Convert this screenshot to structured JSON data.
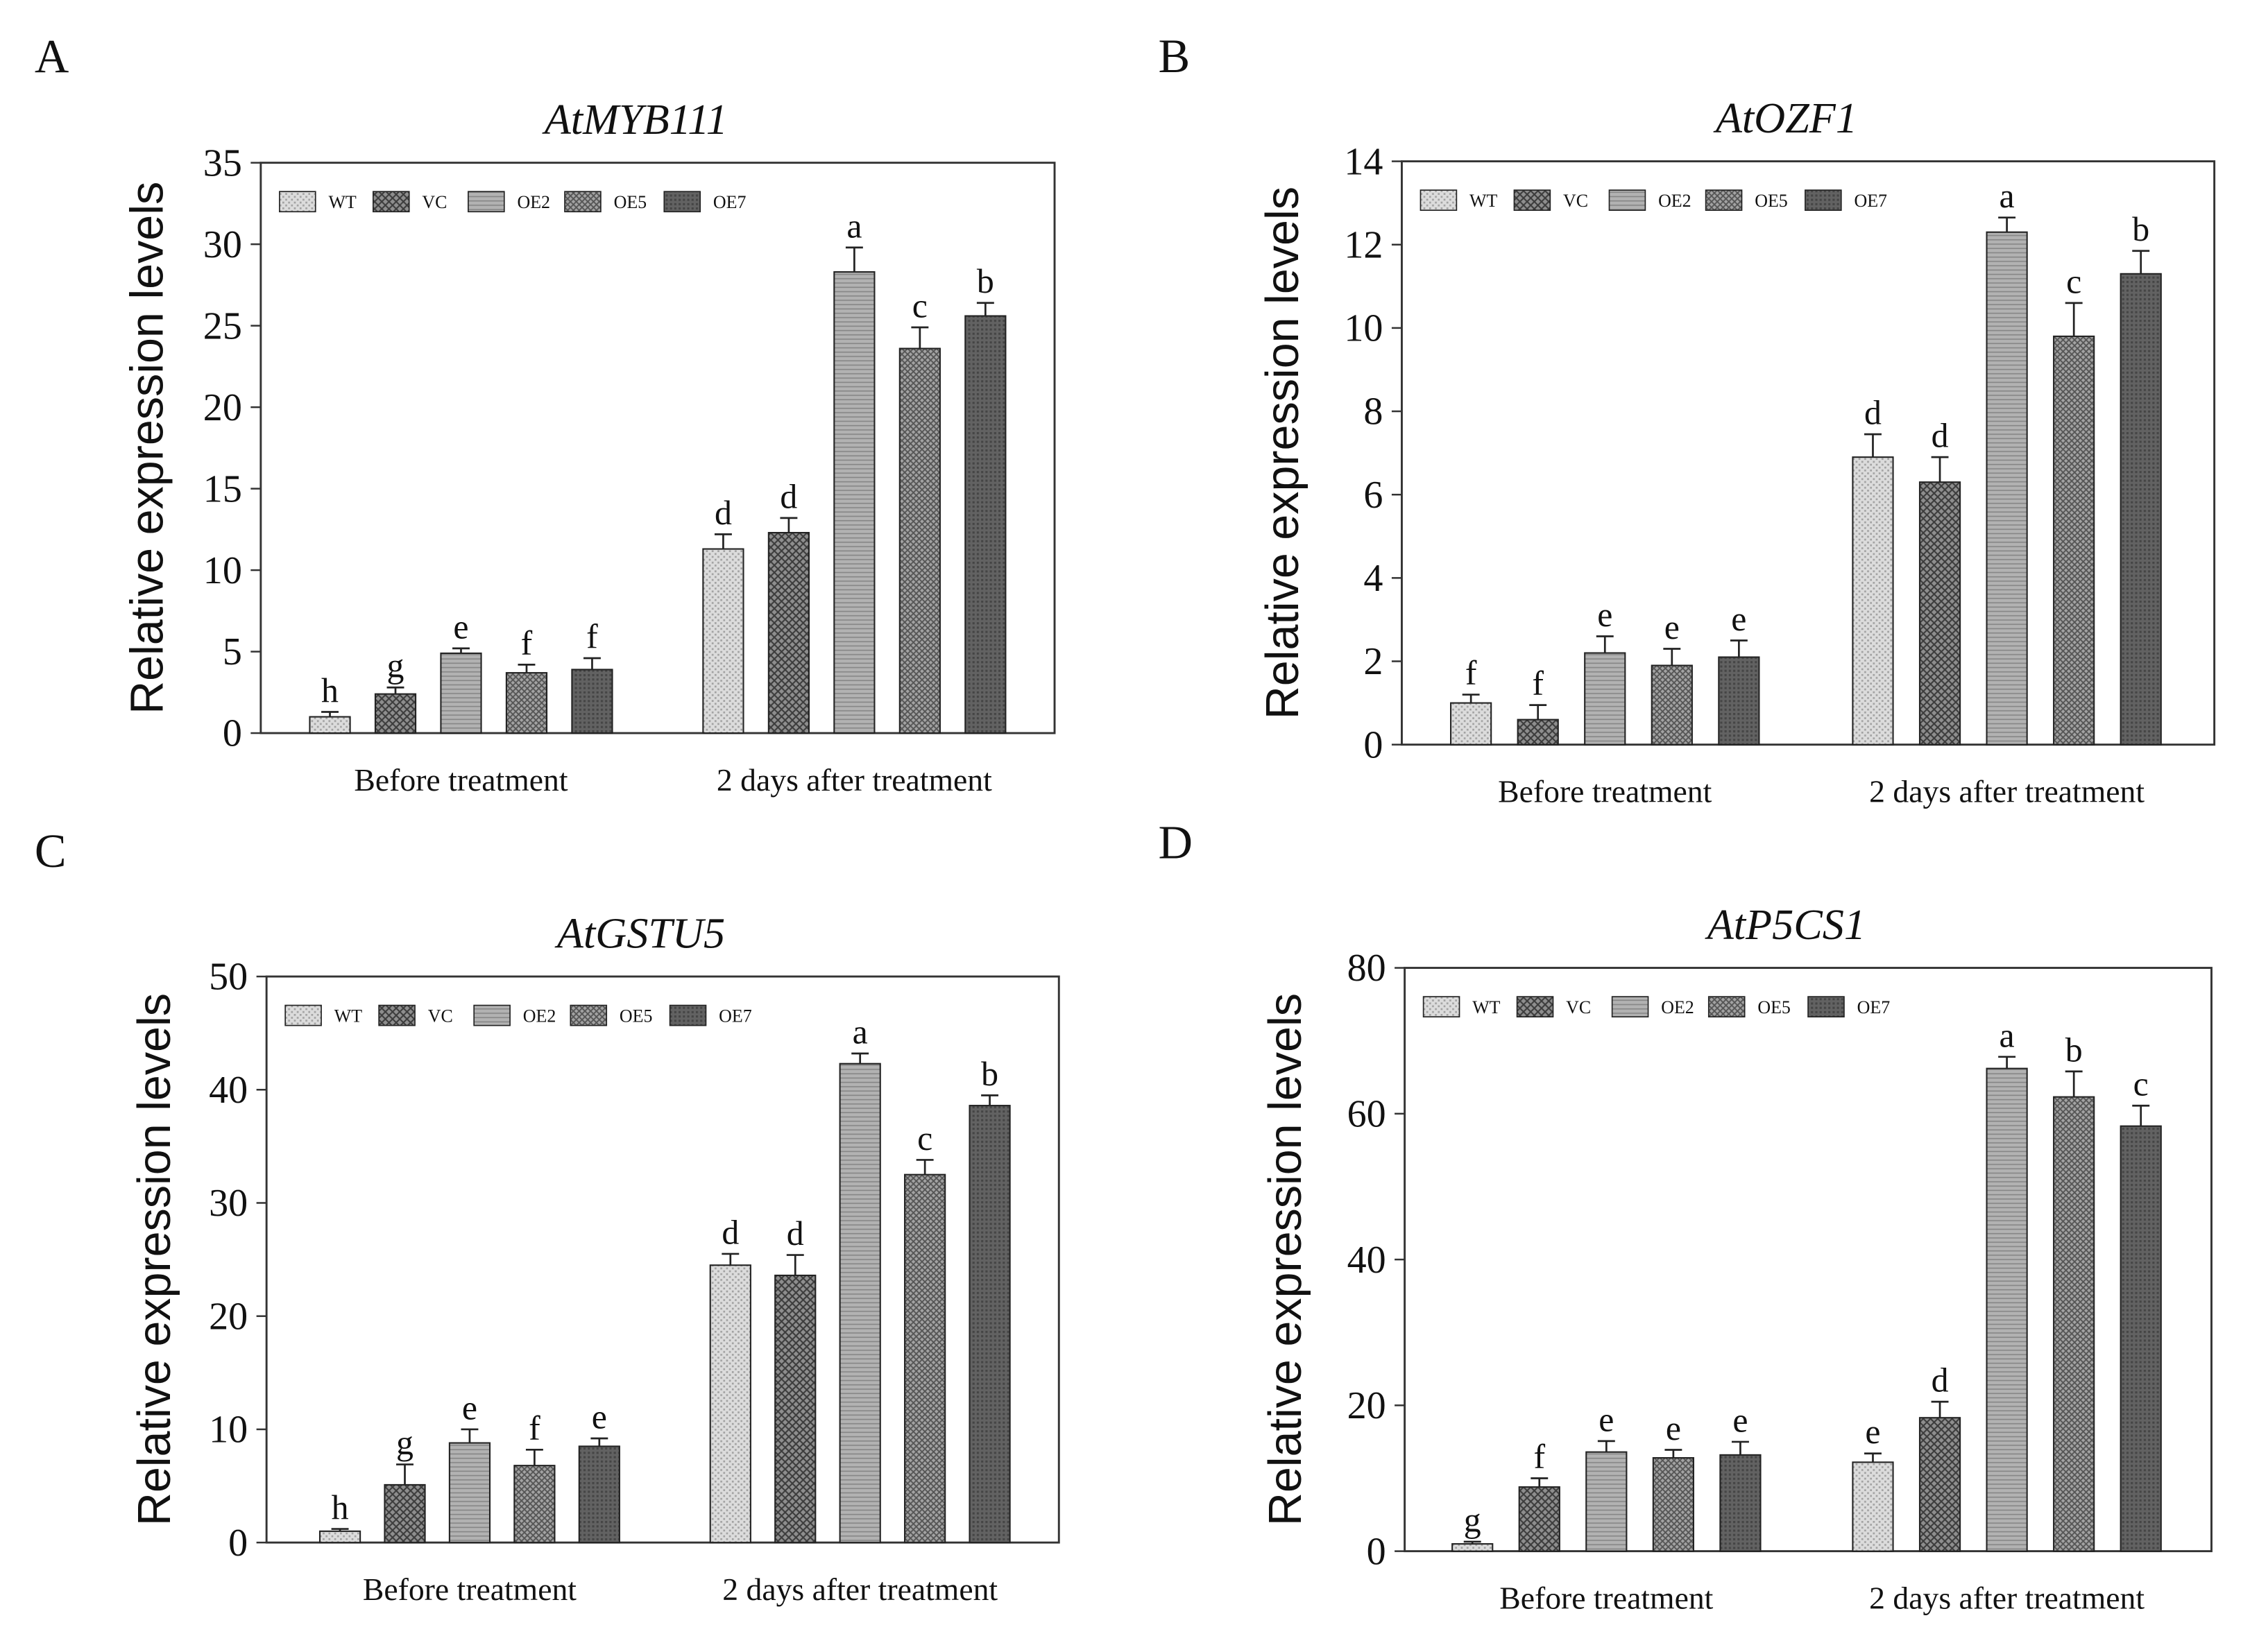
{
  "styles": {
    "series": [
      {
        "fill": "#dcdcdc",
        "hatch": "#a2a2a2"
      },
      {
        "fill": "#8e8e8e",
        "hatch": "#3c3c3c"
      },
      {
        "fill": "#b2b2b2",
        "hatch": "#878787"
      },
      {
        "fill": "#a3a3a3",
        "hatch": "#555555"
      },
      {
        "fill": "#626262",
        "hatch": "#454545"
      }
    ],
    "axis": "#333333"
  },
  "chart_data": [
    {
      "panel_label": "A",
      "type": "bar",
      "title": "AtMYB111",
      "ylabel": "Relative expression levels",
      "ylim": [
        0,
        35
      ],
      "yticks": [
        0,
        5,
        10,
        15,
        20,
        25,
        30,
        35
      ],
      "categories": [
        "Before treatment",
        "2 days after treatment"
      ],
      "legend": "top-left",
      "grid": false,
      "series": [
        {
          "name": "WT",
          "values": [
            1.0,
            11.3
          ],
          "errors": [
            0.3,
            0.9
          ],
          "letters": [
            "h",
            "d"
          ]
        },
        {
          "name": "VC",
          "values": [
            2.4,
            12.3
          ],
          "errors": [
            0.4,
            0.9
          ],
          "letters": [
            "g",
            "d"
          ]
        },
        {
          "name": "OE2",
          "values": [
            4.9,
            28.3
          ],
          "errors": [
            0.3,
            1.5
          ],
          "letters": [
            "e",
            "a"
          ]
        },
        {
          "name": "OE5",
          "values": [
            3.7,
            23.6
          ],
          "errors": [
            0.5,
            1.3
          ],
          "letters": [
            "f",
            "c"
          ]
        },
        {
          "name": "OE7",
          "values": [
            3.9,
            25.6
          ],
          "errors": [
            0.7,
            0.8
          ],
          "letters": [
            "f",
            "b"
          ]
        }
      ]
    },
    {
      "panel_label": "B",
      "type": "bar",
      "title": "AtOZF1",
      "ylabel": "Relative expression levels",
      "ylim": [
        0,
        14
      ],
      "yticks": [
        0,
        2,
        4,
        6,
        8,
        10,
        12,
        14
      ],
      "categories": [
        "Before treatment",
        "2 days after treatment"
      ],
      "legend": "top-left",
      "grid": false,
      "series": [
        {
          "name": "WT",
          "values": [
            1.0,
            6.9
          ],
          "errors": [
            0.2,
            0.55
          ],
          "letters": [
            "f",
            "d"
          ]
        },
        {
          "name": "VC",
          "values": [
            0.6,
            6.3
          ],
          "errors": [
            0.35,
            0.6
          ],
          "letters": [
            "f",
            "d"
          ]
        },
        {
          "name": "OE2",
          "values": [
            2.2,
            12.3
          ],
          "errors": [
            0.4,
            0.35
          ],
          "letters": [
            "e",
            "a"
          ]
        },
        {
          "name": "OE5",
          "values": [
            1.9,
            9.8
          ],
          "errors": [
            0.4,
            0.8
          ],
          "letters": [
            "e",
            "c"
          ]
        },
        {
          "name": "OE7",
          "values": [
            2.1,
            11.3
          ],
          "errors": [
            0.4,
            0.55
          ],
          "letters": [
            "e",
            "b"
          ]
        }
      ]
    },
    {
      "panel_label": "C",
      "type": "bar",
      "title": "AtGSTU5",
      "ylabel": "Relative expression levels",
      "ylim": [
        0,
        50
      ],
      "yticks": [
        0,
        10,
        20,
        30,
        40,
        50
      ],
      "categories": [
        "Before treatment",
        "2 days after treatment"
      ],
      "legend": "top-left",
      "grid": false,
      "series": [
        {
          "name": "WT",
          "values": [
            1.0,
            24.5
          ],
          "errors": [
            0.2,
            1.0
          ],
          "letters": [
            "h",
            "d"
          ]
        },
        {
          "name": "VC",
          "values": [
            5.1,
            23.6
          ],
          "errors": [
            1.8,
            1.8
          ],
          "letters": [
            "g",
            "d"
          ]
        },
        {
          "name": "OE2",
          "values": [
            8.8,
            42.3
          ],
          "errors": [
            1.2,
            0.9
          ],
          "letters": [
            "e",
            "a"
          ]
        },
        {
          "name": "OE5",
          "values": [
            6.8,
            32.5
          ],
          "errors": [
            1.4,
            1.3
          ],
          "letters": [
            "f",
            "c"
          ]
        },
        {
          "name": "OE7",
          "values": [
            8.5,
            38.6
          ],
          "errors": [
            0.7,
            0.9
          ],
          "letters": [
            "e",
            "b"
          ]
        }
      ]
    },
    {
      "panel_label": "D",
      "type": "bar",
      "title": "AtP5CS1",
      "ylabel": "Relative expression levels",
      "ylim": [
        0,
        80
      ],
      "yticks": [
        0,
        20,
        40,
        60,
        80
      ],
      "categories": [
        "Before treatment",
        "2 days after treatment"
      ],
      "legend": "top-left",
      "grid": false,
      "series": [
        {
          "name": "WT",
          "values": [
            1.0,
            12.2
          ],
          "errors": [
            0.3,
            1.2
          ],
          "letters": [
            "g",
            "e"
          ]
        },
        {
          "name": "VC",
          "values": [
            8.8,
            18.3
          ],
          "errors": [
            1.2,
            2.2
          ],
          "letters": [
            "f",
            "d"
          ]
        },
        {
          "name": "OE2",
          "values": [
            13.6,
            66.2
          ],
          "errors": [
            1.5,
            1.6
          ],
          "letters": [
            "e",
            "a"
          ]
        },
        {
          "name": "OE5",
          "values": [
            12.8,
            62.3
          ],
          "errors": [
            1.1,
            3.5
          ],
          "letters": [
            "e",
            "b"
          ]
        },
        {
          "name": "OE7",
          "values": [
            13.2,
            58.3
          ],
          "errors": [
            1.8,
            2.8
          ],
          "letters": [
            "e",
            "c"
          ]
        }
      ]
    }
  ]
}
